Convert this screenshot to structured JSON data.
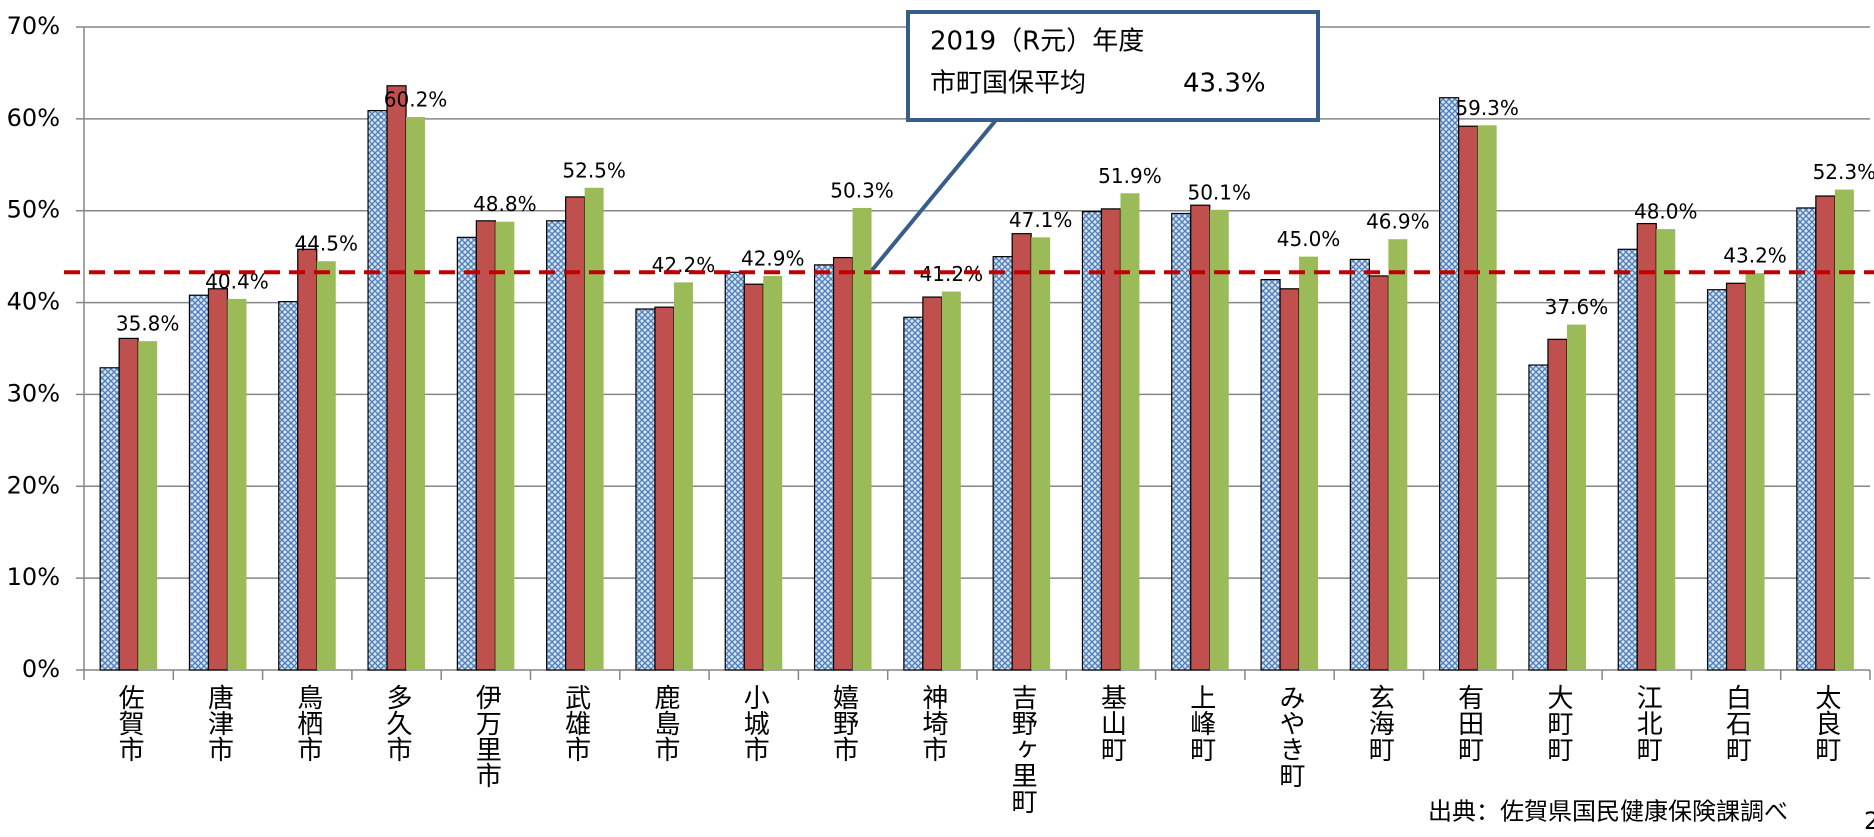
{
  "chart_data": {
    "type": "bar",
    "categories": [
      "佐賀市",
      "唐津市",
      "鳥栖市",
      "多久市",
      "伊万里市",
      "武雄市",
      "鹿島市",
      "小城市",
      "嬉野市",
      "神埼市",
      "吉野ヶ里町",
      "基山町",
      "上峰町",
      "みやき町",
      "玄海町",
      "有田町",
      "大町町",
      "江北町",
      "白石町",
      "太良町"
    ],
    "series": [
      {
        "color": "#4f81bd",
        "values": [
          32.9,
          40.8,
          40.1,
          60.9,
          47.1,
          48.9,
          39.3,
          43.3,
          44.1,
          38.4,
          45.0,
          49.9,
          49.7,
          42.5,
          44.7,
          62.3,
          33.2,
          45.8,
          41.4,
          50.3
        ]
      },
      {
        "color": "#c0504d",
        "values": [
          36.1,
          41.5,
          45.8,
          63.6,
          48.9,
          51.5,
          39.5,
          42.0,
          44.9,
          40.6,
          47.5,
          50.2,
          50.6,
          41.5,
          42.9,
          59.2,
          36.0,
          48.6,
          42.1,
          51.6
        ]
      },
      {
        "color": "#9bbb59",
        "values": [
          35.8,
          40.4,
          44.5,
          60.2,
          48.8,
          52.5,
          42.2,
          42.9,
          50.3,
          41.2,
          47.1,
          51.9,
          50.1,
          45.0,
          46.9,
          59.3,
          37.6,
          48.0,
          43.2,
          52.3
        ],
        "value_labels": [
          "35.8%",
          "40.4%",
          "44.5%",
          "60.2%",
          "48.8%",
          "52.5%",
          "42.2%",
          "42.9%",
          "50.3%",
          "41.2%",
          "47.1%",
          "51.9%",
          "50.1%",
          "45.0%",
          "46.9%",
          "59.3%",
          "37.6%",
          "48.0%",
          "43.2%",
          "52.3%"
        ]
      }
    ],
    "ylim": [
      0,
      70
    ],
    "yticks": [
      {
        "value": 0,
        "label": "0%"
      },
      {
        "value": 10,
        "label": "10%"
      },
      {
        "value": 20,
        "label": "20%"
      },
      {
        "value": 30,
        "label": "30%"
      },
      {
        "value": 40,
        "label": "40%"
      },
      {
        "value": 50,
        "label": "50%"
      },
      {
        "value": 60,
        "label": "60%"
      },
      {
        "value": 70,
        "label": "70%"
      }
    ],
    "grid": true,
    "average": {
      "label_lines": [
        "2019（R元）年度",
        "市町国保平均"
      ],
      "value": 43.3,
      "value_label": "43.3%",
      "color": "#c00000"
    },
    "source": "出典：佐賀県国民健康保険課調べ"
  },
  "page_number": "2"
}
